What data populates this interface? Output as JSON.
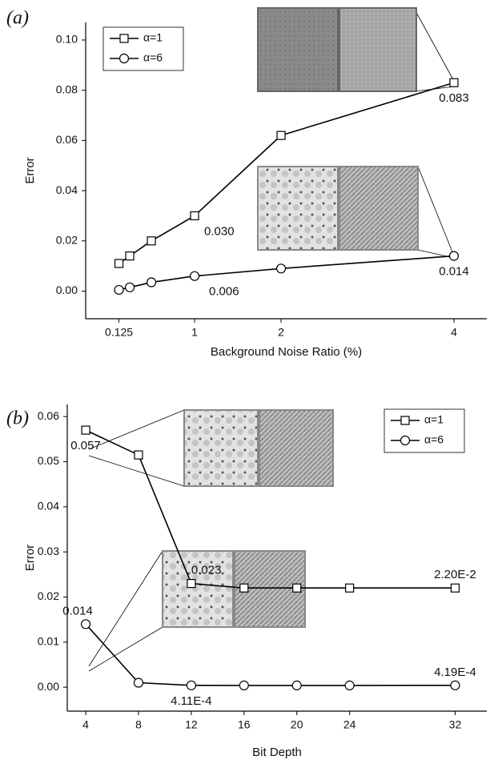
{
  "chart_data": [
    {
      "type": "line",
      "panel_label": "(a)",
      "x_label": "Background Noise Ratio (%)",
      "y_label": "Error",
      "xlim": [
        -0.26,
        4.38
      ],
      "xticks": [
        0.125,
        1,
        2,
        4
      ],
      "ylim": [
        -0.011,
        0.107
      ],
      "yticks": [
        {
          "value": 0,
          "label": "0.00"
        },
        {
          "value": 0.02,
          "label": "0.02"
        },
        {
          "value": 0.04,
          "label": "0.04"
        },
        {
          "value": 0.06,
          "label": "0.06"
        },
        {
          "value": 0.08,
          "label": "0.08"
        },
        {
          "value": 0.1,
          "label": "0.10"
        }
      ],
      "legend": "top-left",
      "x": [
        0.125,
        0.25,
        0.5,
        1,
        2,
        4
      ],
      "series": [
        {
          "name": "α=1",
          "color": "#000000",
          "marker": "square",
          "values": [
            0.011,
            0.014,
            0.02,
            0.03,
            0.062,
            0.083
          ],
          "value_labels": [
            null,
            null,
            null,
            "0.030",
            null,
            "0.083"
          ]
        },
        {
          "name": "α=6",
          "color": "#000000",
          "marker": "circle",
          "values": [
            0.0005,
            0.0015,
            0.0035,
            0.006,
            0.009,
            0.014
          ],
          "value_labels": [
            null,
            null,
            null,
            "0.006",
            null,
            "0.014"
          ]
        }
      ]
    },
    {
      "type": "line",
      "panel_label": "(b)",
      "x_label": "Bit Depth",
      "y_label": "Error",
      "xlim": [
        2.6,
        34.4
      ],
      "xticks": [
        4,
        8,
        12,
        16,
        20,
        24,
        32
      ],
      "ylim": [
        -0.0053,
        0.0627
      ],
      "yticks": [
        {
          "value": 0,
          "label": "0.00"
        },
        {
          "value": 0.01,
          "label": "0.01"
        },
        {
          "value": 0.02,
          "label": "0.02"
        },
        {
          "value": 0.03,
          "label": "0.03"
        },
        {
          "value": 0.04,
          "label": "0.04"
        },
        {
          "value": 0.05,
          "label": "0.05"
        },
        {
          "value": 0.06,
          "label": "0.06"
        }
      ],
      "legend": "top-right",
      "x": [
        4,
        8,
        12,
        16,
        20,
        24,
        32
      ],
      "series": [
        {
          "name": "α=1",
          "color": "#000000",
          "marker": "square",
          "values": [
            0.057,
            0.0515,
            0.023,
            0.022,
            0.022,
            0.022,
            0.022
          ],
          "value_labels": [
            "0.057",
            null,
            "0.023",
            null,
            null,
            null,
            "2.20E-2"
          ]
        },
        {
          "name": "α=6",
          "color": "#000000",
          "marker": "circle",
          "values": [
            0.014,
            0.001,
            0.000411,
            0.0004,
            0.0004,
            0.0004,
            0.000419
          ],
          "value_labels": [
            "0.014",
            null,
            "4.11E-4",
            null,
            null,
            null,
            "4.19E-4"
          ]
        }
      ]
    }
  ]
}
